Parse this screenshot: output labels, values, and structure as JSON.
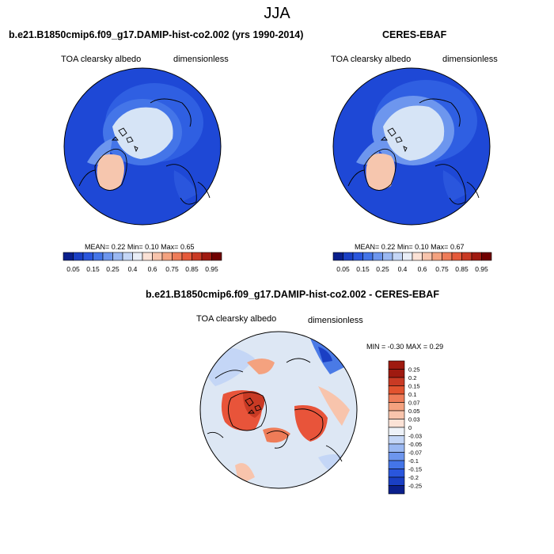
{
  "page": {
    "season": "JJA"
  },
  "panels": [
    {
      "title": "b.e21.B1850cmip6.f09_g17.DAMIP-hist-co2.002 (yrs 1990-2014)",
      "variable": "TOA clearsky albedo",
      "units": "dimensionless",
      "stats": {
        "mean_label": "MEAN=",
        "mean": "0.22",
        "min_label": "Min=",
        "min": "0.10",
        "max_label": "Max=",
        "max": "0.65"
      }
    },
    {
      "title": "CERES-EBAF",
      "variable": "TOA clearsky albedo",
      "units": "dimensionless",
      "stats": {
        "mean_label": "MEAN=",
        "mean": "0.22",
        "min_label": "Min=",
        "min": "0.10",
        "max_label": "Max=",
        "max": "0.67"
      }
    }
  ],
  "albedo_colorbar": {
    "colors": [
      "#0a1f8c",
      "#1a3fc4",
      "#2a56dd",
      "#4475e8",
      "#6d96ee",
      "#9ab8f2",
      "#c4d6f6",
      "#e9eef7",
      "#fbe2d6",
      "#f8c4ac",
      "#f4a27f",
      "#ee7c58",
      "#e55a3a",
      "#c93a24",
      "#9f1a10",
      "#700000"
    ],
    "ticks": [
      "0.05",
      "0.15",
      "0.25",
      "0.4",
      "0.6",
      "0.75",
      "0.85",
      "0.95"
    ]
  },
  "diff_panel": {
    "title": "b.e21.B1850cmip6.f09_g17.DAMIP-hist-co2.002 - CERES-EBAF",
    "variable": "TOA clearsky albedo",
    "units": "dimensionless",
    "stats": {
      "min_label": "MIN =",
      "min": "-0.30",
      "max_label": "MAX =",
      "max": "0.29"
    }
  },
  "diff_colorbar": {
    "colors": [
      "#9f1a10",
      "#c93a24",
      "#e2532f",
      "#ee7c58",
      "#f4a27f",
      "#f8c4ac",
      "#fbe2d6",
      "#eef2f8",
      "#c4d6f6",
      "#9ab8f2",
      "#6d96ee",
      "#4475e8",
      "#2a56dd",
      "#1a3fc4",
      "#0a1f8c"
    ],
    "labels": [
      "0.25",
      "0.2",
      "0.15",
      "0.1",
      "0.07",
      "0.05",
      "0.03",
      "0",
      "-0.03",
      "-0.05",
      "-0.07",
      "-0.1",
      "-0.15",
      "-0.2",
      "-0.25"
    ]
  },
  "map_colors": {
    "ocean_dark": "#1e48d6",
    "ocean_mid": "#2f5fe2",
    "ice": "#d6e4f6",
    "greenland": "#f6c6ae",
    "diff_base": "#dde7f4",
    "diff_pos": "#e8543a",
    "diff_neg": "#4a7ae6"
  }
}
